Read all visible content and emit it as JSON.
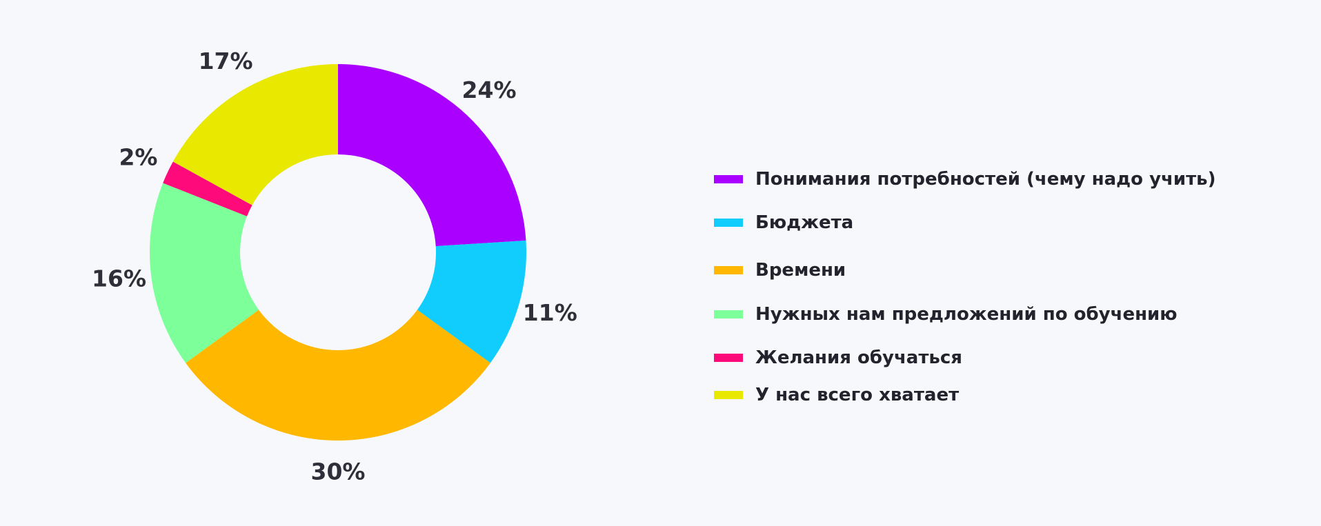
{
  "chart_data": {
    "type": "pie",
    "donut": true,
    "slices": [
      {
        "label": "Понимания потребностей (чему надо учить)",
        "value": 24,
        "display": "24%",
        "color": "#aa00ff"
      },
      {
        "label": "Бюджета",
        "value": 11,
        "display": "11%",
        "color": "#10cdfd"
      },
      {
        "label": "Времени",
        "value": 30,
        "display": "30%",
        "color": "#ffb700"
      },
      {
        "label": "Нужных нам предложений по обучению",
        "value": 16,
        "display": "16%",
        "color": "#7dff9a"
      },
      {
        "label": "Желания обучаться",
        "value": 2,
        "display": "2%",
        "color": "#ff0a7a"
      },
      {
        "label": "У нас всего хватает",
        "value": 17,
        "display": "17%",
        "color": "#e8e800"
      }
    ],
    "legend_position": "right"
  }
}
